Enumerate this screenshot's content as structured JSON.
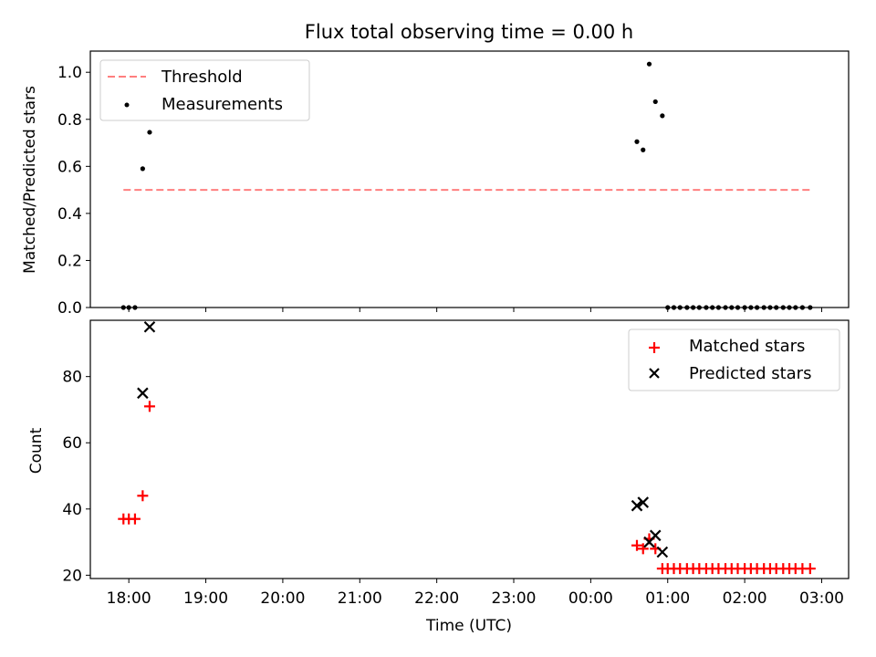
{
  "chart_data": [
    {
      "type": "scatter",
      "title": "Flux total observing time = 0.00 h",
      "xlabel": "",
      "ylabel": "Matched/Predicted stars",
      "xlim": [
        17.5,
        27.35
      ],
      "ylim": [
        0,
        1.09
      ],
      "yticks": [
        0.0,
        0.2,
        0.4,
        0.6,
        0.8,
        1.0
      ],
      "ytick_labels": [
        "0.0",
        "0.2",
        "0.4",
        "0.6",
        "0.8",
        "1.0"
      ],
      "x_unit": "hours since 00:00 UTC (values above 24 are after midnight)",
      "legend_position": "upper left",
      "series": [
        {
          "name": "Threshold",
          "kind": "dashed-line",
          "color": "#ff7f7f",
          "x": [
            17.93,
            26.85
          ],
          "y": [
            0.5,
            0.5
          ]
        },
        {
          "name": "Measurements",
          "kind": "dots",
          "color": "#000000",
          "x": [
            17.93,
            18.0,
            18.08,
            18.18,
            18.27,
            24.6,
            24.68,
            24.76,
            24.84,
            24.93,
            25.0,
            25.08,
            25.16,
            25.25,
            25.33,
            25.41,
            25.5,
            25.58,
            25.66,
            25.75,
            25.83,
            25.91,
            26.0,
            26.08,
            26.16,
            26.25,
            26.33,
            26.41,
            26.5,
            26.58,
            26.66,
            26.75,
            26.85
          ],
          "y": [
            0,
            0,
            0,
            0.59,
            0.745,
            0.705,
            0.67,
            1.035,
            0.875,
            0.815,
            0,
            0,
            0,
            0,
            0,
            0,
            0,
            0,
            0,
            0,
            0,
            0,
            0,
            0,
            0,
            0,
            0,
            0,
            0,
            0,
            0,
            0,
            0
          ]
        }
      ]
    },
    {
      "type": "scatter",
      "title": "",
      "xlabel": "Time (UTC)",
      "ylabel": "Count",
      "xlim": [
        17.5,
        27.35
      ],
      "ylim": [
        19,
        97
      ],
      "yticks": [
        20,
        40,
        60,
        80
      ],
      "ytick_labels": [
        "20",
        "40",
        "60",
        "80"
      ],
      "xticks": [
        18,
        19,
        20,
        21,
        22,
        23,
        24,
        25,
        26,
        27
      ],
      "xtick_labels": [
        "18:00",
        "19:00",
        "20:00",
        "21:00",
        "22:00",
        "23:00",
        "00:00",
        "01:00",
        "02:00",
        "03:00"
      ],
      "x_unit": "hours since 00:00 UTC (values above 24 are after midnight)",
      "legend_position": "upper right",
      "series": [
        {
          "name": "Matched stars",
          "marker": "plus",
          "color": "#ff0000",
          "x": [
            17.93,
            18.0,
            18.08,
            18.18,
            18.27,
            24.6,
            24.68,
            24.76,
            24.84,
            24.93,
            25.0,
            25.08,
            25.16,
            25.25,
            25.33,
            25.41,
            25.5,
            25.58,
            25.66,
            25.75,
            25.83,
            25.91,
            26.0,
            26.08,
            26.16,
            26.25,
            26.33,
            26.41,
            26.5,
            26.58,
            26.66,
            26.75,
            26.85
          ],
          "y": [
            37,
            37,
            37,
            44,
            71,
            29,
            28,
            31,
            28,
            22,
            22,
            22,
            22,
            22,
            22,
            22,
            22,
            22,
            22,
            22,
            22,
            22,
            22,
            22,
            22,
            22,
            22,
            22,
            22,
            22,
            22,
            22,
            22
          ]
        },
        {
          "name": "Predicted stars",
          "marker": "x",
          "color": "#000000",
          "x": [
            18.18,
            18.27,
            24.6,
            24.68,
            24.76,
            24.84,
            24.93
          ],
          "y": [
            75,
            95,
            41,
            42,
            30,
            32,
            27
          ]
        }
      ]
    }
  ]
}
